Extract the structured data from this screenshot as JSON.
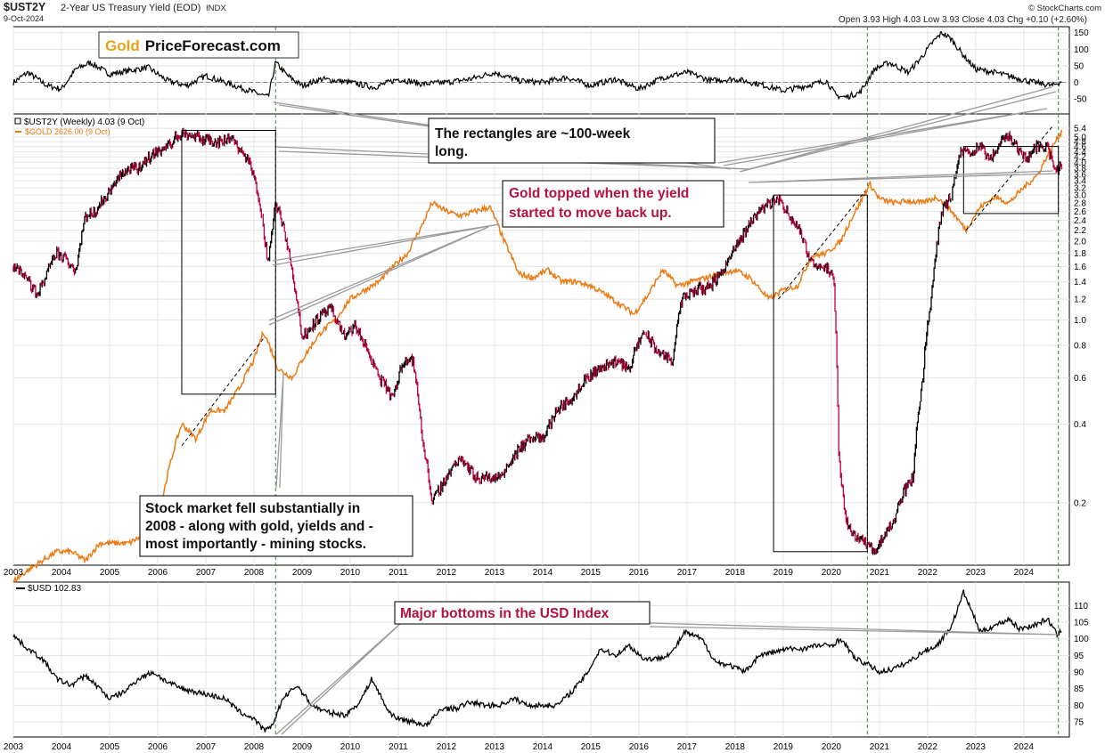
{
  "header": {
    "symbol": "$UST2Y",
    "title": "2-Year US Treasury Yield (EOD)",
    "exchange": "INDX",
    "date": "9-Oct-2024",
    "source": "© StockCharts.com",
    "stats": "Open 3.93  High 4.03  Low 3.93  Close 4.03  Chg +0.10 (+2.60%)"
  },
  "brand": {
    "part1": "Gold",
    "part2": "PriceForecast.com",
    "part1_color": "#e8a21a",
    "part2_color": "#111111"
  },
  "legend": {
    "ust2y": "$UST2Y (Weekly) 4.03 (9 Oct)",
    "gold": "$GOLD 2626.00 (9 Oct)",
    "usd": "$USD 102.83"
  },
  "colors": {
    "ust2y_up": "#000000",
    "ust2y_down": "#c0003c",
    "gold": "#ee7a13",
    "usd": "#000000",
    "annotation_red": "#b5123f",
    "guide_green": "#2f8f2f"
  },
  "annotations": {
    "rectangles": "The rectangles are ~100-week long.",
    "gold_topped": "Gold topped when the yield started to move back up.",
    "stock_market": "Stock market fell substantially in 2008 - along with gold, yields and - most importantly - mining stocks.",
    "usd_bottoms": "Major bottoms in the USD Index"
  },
  "chart_data": [
    {
      "type": "line",
      "title": "",
      "x_range": [
        2003,
        2024.8
      ],
      "ylim": [
        -90,
        160
      ],
      "y_ticks": [
        -50,
        0,
        50,
        100,
        150
      ],
      "x": [
        2003.0,
        2003.3,
        2003.7,
        2004.0,
        2004.3,
        2004.6,
        2005.0,
        2005.4,
        2005.8,
        2006.2,
        2006.6,
        2007.0,
        2007.5,
        2008.0,
        2008.3,
        2008.45,
        2008.7,
        2009.0,
        2009.4,
        2010.0,
        2010.5,
        2011.0,
        2011.5,
        2012.0,
        2012.5,
        2013.0,
        2013.5,
        2014.0,
        2014.5,
        2015.0,
        2015.5,
        2016.0,
        2016.5,
        2017.0,
        2017.5,
        2018.0,
        2018.5,
        2019.0,
        2019.5,
        2019.9,
        2020.1,
        2020.3,
        2020.6,
        2020.9,
        2021.2,
        2021.6,
        2021.9,
        2022.1,
        2022.3,
        2022.5,
        2022.7,
        2023.0,
        2023.4,
        2023.8,
        2024.2,
        2024.6,
        2024.8
      ],
      "values": [
        0,
        30,
        -10,
        -20,
        40,
        60,
        25,
        35,
        45,
        5,
        -10,
        20,
        -5,
        -30,
        -45,
        60,
        20,
        -10,
        10,
        0,
        -15,
        10,
        -5,
        0,
        10,
        30,
        5,
        0,
        15,
        -10,
        10,
        -20,
        15,
        30,
        5,
        10,
        -5,
        -25,
        -10,
        5,
        -40,
        -45,
        -30,
        40,
        60,
        30,
        80,
        120,
        150,
        130,
        90,
        40,
        30,
        15,
        0,
        -10,
        5
      ]
    },
    {
      "type": "line",
      "title": "",
      "y_scale": "log",
      "x_range": [
        2003,
        2024.8
      ],
      "y_ticks": [
        0.2,
        0.4,
        0.6,
        0.8,
        1.0,
        1.2,
        1.4,
        1.6,
        1.8,
        2.0,
        2.2,
        2.4,
        2.6,
        2.8,
        3.0,
        3.2,
        3.4,
        3.6,
        3.8,
        4.0,
        4.2,
        4.4,
        4.6,
        4.8,
        5.0,
        5.4
      ],
      "series": [
        {
          "name": "$UST2Y (Weekly) 4.03 (9 Oct)",
          "x": [
            2003.0,
            2003.2,
            2003.5,
            2003.7,
            2003.9,
            2004.1,
            2004.3,
            2004.5,
            2004.7,
            2005.0,
            2005.3,
            2005.6,
            2005.9,
            2006.2,
            2006.5,
            2006.8,
            2007.0,
            2007.3,
            2007.5,
            2007.7,
            2007.9,
            2008.1,
            2008.2,
            2008.3,
            2008.45,
            2008.6,
            2008.8,
            2009.0,
            2009.3,
            2009.6,
            2009.9,
            2010.1,
            2010.3,
            2010.6,
            2010.9,
            2011.1,
            2011.3,
            2011.5,
            2011.7,
            2012.0,
            2012.3,
            2012.6,
            2012.9,
            2013.1,
            2013.4,
            2013.7,
            2014.0,
            2014.3,
            2014.6,
            2014.9,
            2015.2,
            2015.5,
            2015.8,
            2016.1,
            2016.4,
            2016.7,
            2016.9,
            2017.2,
            2017.5,
            2017.8,
            2018.1,
            2018.4,
            2018.7,
            2018.9,
            2019.1,
            2019.3,
            2019.5,
            2019.7,
            2019.9,
            2020.05,
            2020.15,
            2020.3,
            2020.5,
            2020.7,
            2020.9,
            2021.1,
            2021.3,
            2021.5,
            2021.7,
            2021.9,
            2022.1,
            2022.3,
            2022.5,
            2022.7,
            2022.9,
            2023.1,
            2023.3,
            2023.5,
            2023.7,
            2023.9,
            2024.1,
            2024.3,
            2024.5,
            2024.65,
            2024.8
          ],
          "values": [
            1.6,
            1.5,
            1.25,
            1.5,
            1.8,
            1.7,
            1.55,
            2.5,
            2.6,
            3.1,
            3.7,
            3.8,
            4.3,
            4.6,
            5.2,
            5.0,
            4.9,
            4.8,
            5.0,
            4.5,
            4.0,
            3.0,
            2.2,
            1.6,
            2.8,
            2.3,
            1.5,
            0.85,
            1.0,
            1.1,
            0.85,
            0.95,
            0.8,
            0.6,
            0.5,
            0.7,
            0.7,
            0.35,
            0.2,
            0.25,
            0.3,
            0.25,
            0.25,
            0.25,
            0.3,
            0.35,
            0.35,
            0.45,
            0.5,
            0.6,
            0.65,
            0.7,
            0.65,
            0.9,
            0.75,
            0.7,
            1.2,
            1.3,
            1.35,
            1.6,
            2.0,
            2.5,
            2.8,
            2.9,
            2.55,
            2.3,
            1.8,
            1.6,
            1.6,
            1.4,
            0.3,
            0.17,
            0.15,
            0.14,
            0.13,
            0.15,
            0.17,
            0.22,
            0.25,
            0.6,
            1.3,
            2.6,
            3.0,
            4.4,
            4.4,
            4.6,
            4.0,
            4.8,
            5.1,
            4.4,
            4.2,
            4.7,
            4.6,
            3.6,
            4.03
          ]
        },
        {
          "name": "$GOLD 2626.00 (9 Oct)",
          "x": [
            2003.0,
            2003.3,
            2003.6,
            2003.9,
            2004.2,
            2004.5,
            2004.8,
            2005.1,
            2005.4,
            2005.7,
            2006.0,
            2006.3,
            2006.5,
            2006.8,
            2007.1,
            2007.4,
            2007.7,
            2008.0,
            2008.2,
            2008.5,
            2008.8,
            2009.1,
            2009.4,
            2009.7,
            2010.0,
            2010.3,
            2010.6,
            2010.9,
            2011.2,
            2011.5,
            2011.7,
            2012.0,
            2012.3,
            2012.6,
            2012.9,
            2013.2,
            2013.5,
            2013.8,
            2014.1,
            2014.4,
            2014.7,
            2015.0,
            2015.3,
            2015.6,
            2015.9,
            2016.2,
            2016.5,
            2016.8,
            2017.1,
            2017.4,
            2017.7,
            2018.0,
            2018.3,
            2018.7,
            2019.0,
            2019.3,
            2019.6,
            2019.9,
            2020.2,
            2020.6,
            2020.8,
            2021.0,
            2021.3,
            2021.6,
            2021.9,
            2022.2,
            2022.5,
            2022.8,
            2023.1,
            2023.4,
            2023.7,
            2024.0,
            2024.3,
            2024.6,
            2024.8
          ],
          "values": [
            0.1,
            0.11,
            0.12,
            0.13,
            0.13,
            0.12,
            0.14,
            0.14,
            0.14,
            0.15,
            0.16,
            0.3,
            0.4,
            0.35,
            0.45,
            0.45,
            0.55,
            0.7,
            0.9,
            0.65,
            0.6,
            0.75,
            0.9,
            1.0,
            1.2,
            1.3,
            1.4,
            1.6,
            1.8,
            2.3,
            2.8,
            2.6,
            2.5,
            2.6,
            2.7,
            2.0,
            1.5,
            1.45,
            1.55,
            1.4,
            1.4,
            1.35,
            1.25,
            1.15,
            1.05,
            1.25,
            1.55,
            1.35,
            1.4,
            1.45,
            1.5,
            1.55,
            1.45,
            1.2,
            1.3,
            1.35,
            1.75,
            1.8,
            2.0,
            2.8,
            3.3,
            2.9,
            2.8,
            2.85,
            2.8,
            2.95,
            2.6,
            2.2,
            2.7,
            2.95,
            2.8,
            3.2,
            3.6,
            4.6,
            5.3
          ]
        }
      ]
    },
    {
      "type": "line",
      "title": "",
      "x_range": [
        2003,
        2024.8
      ],
      "ylim": [
        71,
        116
      ],
      "y_ticks": [
        75,
        80,
        85,
        90,
        95,
        100,
        105,
        110
      ],
      "x": [
        2003.0,
        2003.3,
        2003.6,
        2003.9,
        2004.2,
        2004.5,
        2004.8,
        2005.0,
        2005.3,
        2005.6,
        2005.9,
        2006.2,
        2006.5,
        2006.8,
        2007.1,
        2007.4,
        2007.7,
        2008.0,
        2008.2,
        2008.35,
        2008.6,
        2008.9,
        2009.2,
        2009.5,
        2009.9,
        2010.2,
        2010.45,
        2010.8,
        2011.0,
        2011.3,
        2011.6,
        2011.9,
        2012.2,
        2012.5,
        2012.8,
        2013.1,
        2013.4,
        2013.7,
        2014.0,
        2014.3,
        2014.6,
        2014.9,
        2015.2,
        2015.5,
        2015.8,
        2016.1,
        2016.4,
        2016.7,
        2016.95,
        2017.3,
        2017.6,
        2017.9,
        2018.2,
        2018.5,
        2018.8,
        2019.1,
        2019.4,
        2019.7,
        2020.0,
        2020.2,
        2020.5,
        2020.8,
        2021.0,
        2021.3,
        2021.6,
        2021.9,
        2022.2,
        2022.5,
        2022.75,
        2022.9,
        2023.1,
        2023.4,
        2023.7,
        2023.9,
        2024.2,
        2024.5,
        2024.7,
        2024.8
      ],
      "values": [
        101,
        97,
        94,
        88,
        86,
        89,
        85,
        82,
        84,
        88,
        90,
        87,
        85,
        84,
        83,
        82,
        78,
        76,
        72.5,
        73,
        82,
        86,
        80,
        78,
        77,
        81,
        88,
        78,
        76,
        75,
        74,
        79,
        79,
        81,
        80,
        80,
        82,
        80,
        80,
        80,
        84,
        89,
        97,
        95,
        98,
        94,
        94,
        96,
        102,
        100,
        93,
        92,
        90,
        95,
        96,
        97,
        97,
        98,
        98,
        100,
        94,
        92,
        90,
        91,
        93,
        96,
        98,
        104,
        114,
        109,
        102,
        104,
        106,
        103,
        104,
        106,
        101,
        102.83
      ]
    }
  ]
}
